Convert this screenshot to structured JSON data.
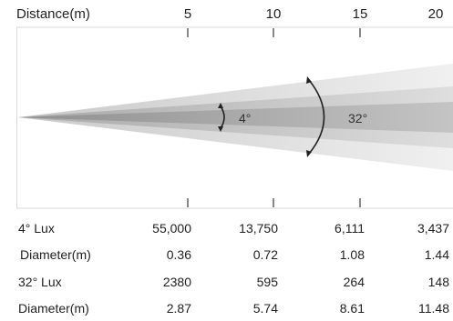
{
  "header": {
    "distance_label": "Distance(m)",
    "distance_ticks": [
      "5",
      "10",
      "15",
      "20"
    ]
  },
  "beam": {
    "narrow_angle": "4°",
    "wide_angle": "32°"
  },
  "table": {
    "rows": [
      {
        "label": "4° Lux",
        "values": [
          "55,000",
          "13,750",
          "6,111",
          "3,437"
        ]
      },
      {
        "label": "Diameter(m)",
        "values": [
          "0.36",
          "0.72",
          "1.08",
          "1.44"
        ]
      },
      {
        "label": "32° Lux",
        "values": [
          "2380",
          "595",
          "264",
          "148"
        ]
      },
      {
        "label": "Diameter(m)",
        "values": [
          "2.87",
          "5.74",
          "8.61",
          "11.48"
        ]
      }
    ]
  },
  "colors": {
    "beam_outer": "#efefef",
    "beam_mid": "#d4d4d4",
    "beam_inner": "#b0b0b0",
    "border": "#d9d9d9",
    "tick": "#888888"
  }
}
